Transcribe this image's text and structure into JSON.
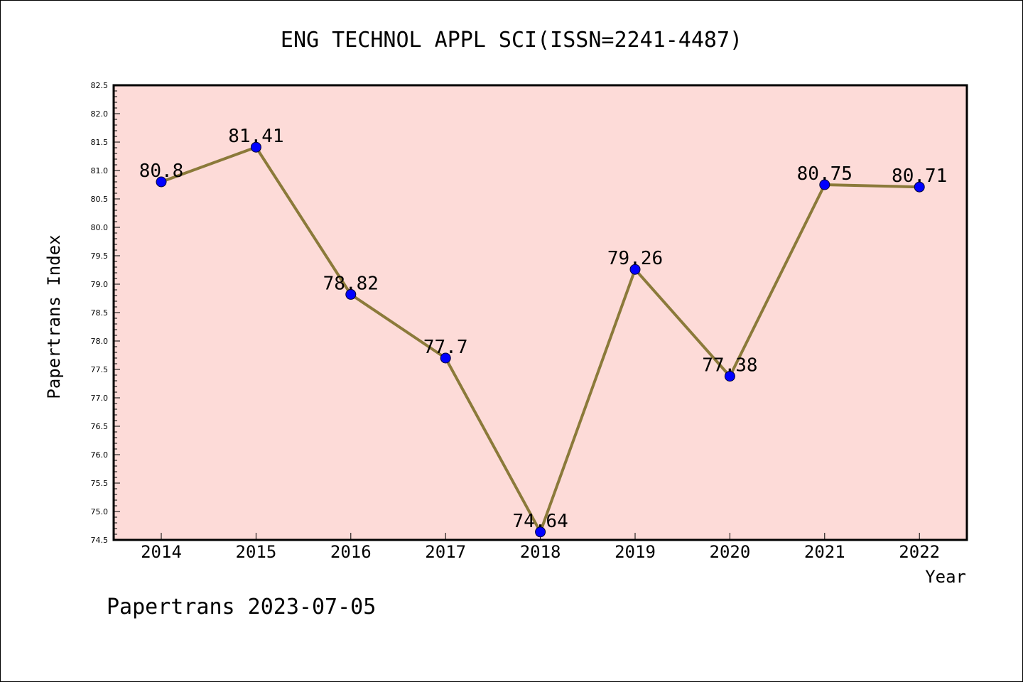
{
  "chart_data": {
    "type": "line",
    "title": "ENG TECHNOL APPL SCI(ISSN=2241-4487)",
    "xlabel": "Year",
    "ylabel": "Papertrans Index",
    "categories": [
      "2014",
      "2015",
      "2016",
      "2017",
      "2018",
      "2019",
      "2020",
      "2021",
      "2022"
    ],
    "values": [
      80.8,
      81.41,
      78.82,
      77.7,
      74.64,
      79.26,
      77.38,
      80.75,
      80.71
    ],
    "data_labels": [
      "80.8",
      "81.41",
      "78.82",
      "77.7",
      "74.64",
      "79.26",
      "77.38",
      "80.75",
      "80.71"
    ],
    "ylim": [
      74.5,
      82.5
    ],
    "yticks": [
      "74.5",
      "75.0",
      "75.5",
      "76.0",
      "76.5",
      "77.0",
      "77.5",
      "78.0",
      "78.5",
      "79.0",
      "79.5",
      "80.0",
      "80.5",
      "81.0",
      "81.5",
      "82.0",
      "82.5"
    ],
    "grid": false,
    "colors": {
      "plot_background": "#fddbd8",
      "line": "#8b7a3a",
      "marker": "#0000ff"
    }
  },
  "footer": "Papertrans 2023-07-05"
}
